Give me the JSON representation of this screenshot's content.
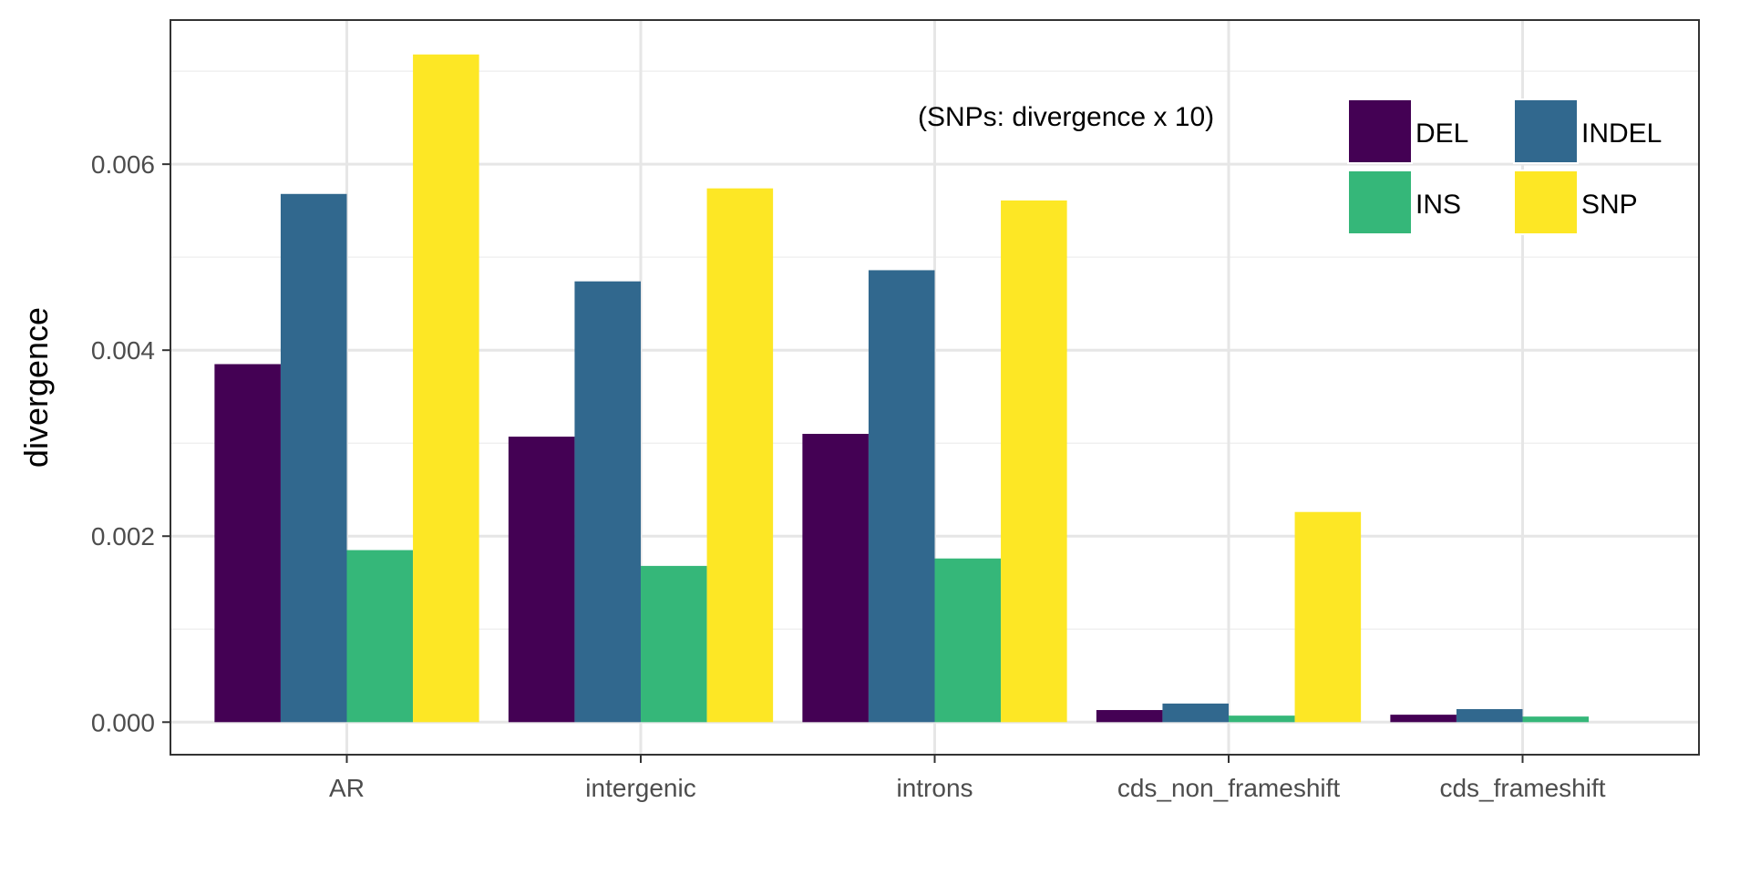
{
  "chart_data": {
    "type": "bar",
    "categories": [
      "AR",
      "intergenic",
      "introns",
      "cds_non_frameshift",
      "cds_frameshift"
    ],
    "series": [
      {
        "name": "DEL",
        "color": "#440154",
        "values": [
          0.00385,
          0.00307,
          0.0031,
          0.00013,
          8e-05
        ]
      },
      {
        "name": "INDEL",
        "color": "#31688E",
        "values": [
          0.00568,
          0.00474,
          0.00486,
          0.0002,
          0.00014
        ]
      },
      {
        "name": "INS",
        "color": "#35B779",
        "values": [
          0.00185,
          0.00168,
          0.00176,
          7e-05,
          6e-05
        ]
      },
      {
        "name": "SNP",
        "color": "#FDE725",
        "values": [
          0.00718,
          0.00574,
          0.00561,
          0.00226,
          null
        ]
      }
    ],
    "ylabel": "divergence",
    "xlabel": "",
    "ylim": [
      -0.00035,
      0.00755
    ],
    "yticks": [
      "0.000",
      "0.002",
      "0.004",
      "0.006"
    ],
    "ytick_values": [
      0,
      0.002,
      0.004,
      0.006
    ],
    "annotation": "(SNPs: divergence x 10)",
    "legend_position": "top-right",
    "grid": true
  }
}
